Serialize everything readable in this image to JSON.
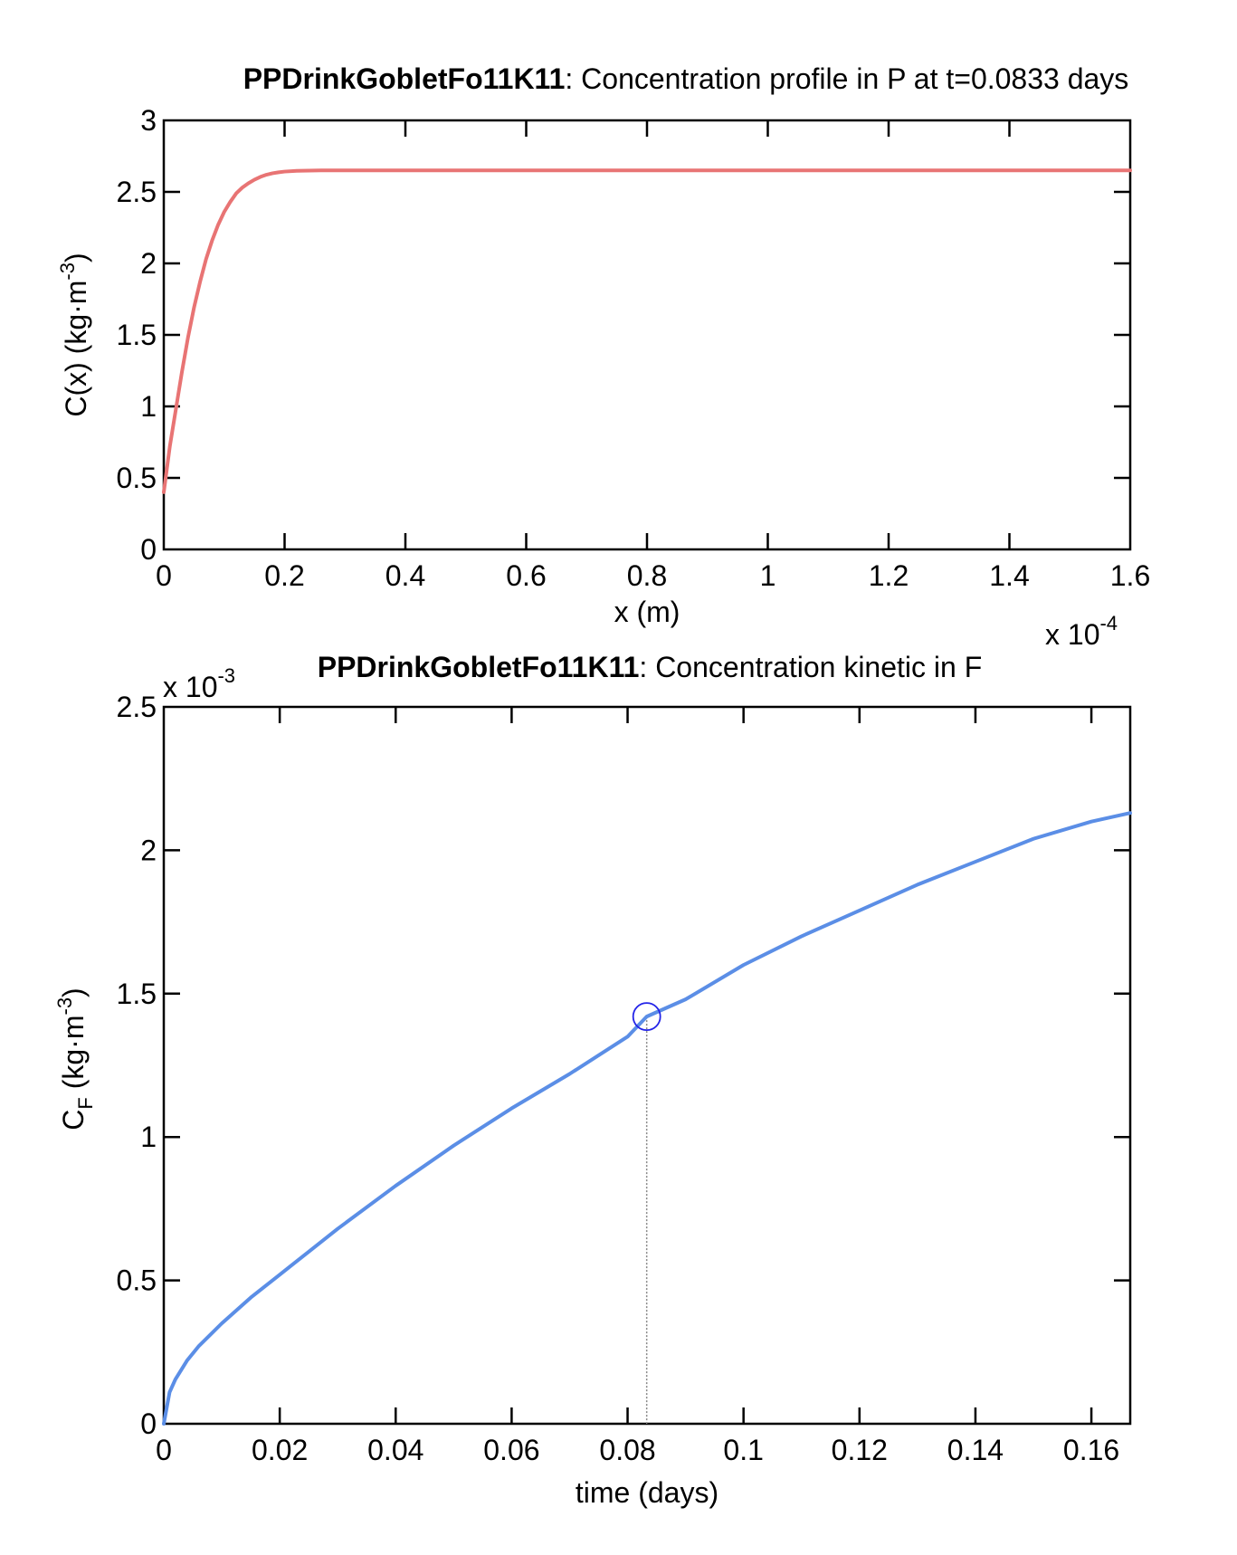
{
  "chart_data": [
    {
      "type": "line",
      "title_prefix": "PPDrinkGobletFo11K11",
      "title_suffix": ": Concentration profile in P at t=0.0833 days",
      "xlabel": "x (m)",
      "ylabel": "C(x) (kg·m",
      "ylabel_sup": "-3",
      "ylabel_close": ")",
      "x_exponent_base": "x 10",
      "x_exponent_power": "-4",
      "xlim": [
        0,
        1.6
      ],
      "ylim": [
        0,
        3
      ],
      "xticks": [
        0,
        0.2,
        0.4,
        0.6,
        0.8,
        1,
        1.2,
        1.4,
        1.6
      ],
      "yticks": [
        0,
        0.5,
        1,
        1.5,
        2,
        2.5,
        3
      ],
      "series": [
        {
          "color": "#e87474",
          "x": [
            0,
            0.01,
            0.02,
            0.03,
            0.04,
            0.05,
            0.06,
            0.07,
            0.08,
            0.09,
            0.1,
            0.11,
            0.12,
            0.13,
            0.14,
            0.15,
            0.16,
            0.17,
            0.18,
            0.19,
            0.2,
            0.22,
            0.24,
            0.26,
            0.28,
            0.3,
            0.35,
            0.4,
            0.5,
            0.6,
            0.8,
            1.0,
            1.2,
            1.4,
            1.6
          ],
          "y": [
            0.4,
            0.72,
            0.98,
            1.24,
            1.48,
            1.69,
            1.87,
            2.03,
            2.16,
            2.27,
            2.36,
            2.43,
            2.49,
            2.53,
            2.56,
            2.585,
            2.605,
            2.62,
            2.63,
            2.637,
            2.642,
            2.647,
            2.649,
            2.65,
            2.65,
            2.65,
            2.65,
            2.65,
            2.65,
            2.65,
            2.65,
            2.65,
            2.65,
            2.65,
            2.65
          ]
        }
      ]
    },
    {
      "type": "line",
      "title_prefix": "PPDrinkGobletFo11K11",
      "title_suffix": ": Concentration kinetic in F",
      "xlabel": "time (days)",
      "ylabel_main": "C",
      "ylabel_sub": "F",
      "ylabel_rest": " (kg·m",
      "ylabel_sup": "-3",
      "ylabel_close": ")",
      "y_exponent_base": "x 10",
      "y_exponent_power": "-3",
      "xlim": [
        0,
        0.1667
      ],
      "ylim": [
        0,
        2.5
      ],
      "xticks": [
        0,
        0.02,
        0.04,
        0.06,
        0.08,
        0.1,
        0.12,
        0.14,
        0.16
      ],
      "yticks": [
        0,
        0.5,
        1,
        1.5,
        2,
        2.5
      ],
      "marker": {
        "x": 0.0833,
        "y": 1.42,
        "color": "#2323e8"
      },
      "series": [
        {
          "color": "#5b8ee6",
          "x": [
            0,
            0.001,
            0.002,
            0.004,
            0.006,
            0.008,
            0.01,
            0.015,
            0.02,
            0.025,
            0.03,
            0.04,
            0.05,
            0.06,
            0.07,
            0.08,
            0.0833,
            0.09,
            0.1,
            0.11,
            0.12,
            0.13,
            0.14,
            0.15,
            0.16,
            0.1667
          ],
          "y": [
            0,
            0.11,
            0.155,
            0.22,
            0.27,
            0.31,
            0.35,
            0.44,
            0.52,
            0.6,
            0.68,
            0.83,
            0.97,
            1.1,
            1.22,
            1.35,
            1.42,
            1.48,
            1.6,
            1.7,
            1.79,
            1.88,
            1.96,
            2.04,
            2.1,
            2.13
          ]
        }
      ]
    }
  ]
}
